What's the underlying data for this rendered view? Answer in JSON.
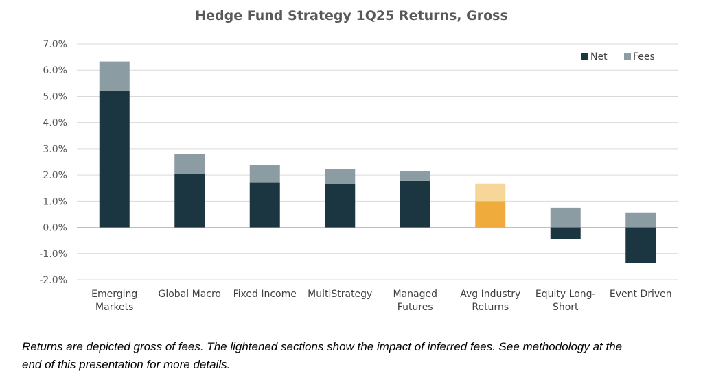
{
  "chart_data": {
    "type": "bar",
    "stacked": true,
    "title": "Hedge Fund Strategy 1Q25 Returns, Gross",
    "xlabel": "",
    "ylabel": "",
    "ylim": [
      -2.0,
      7.0
    ],
    "y_ticks": [
      "7.0%",
      "6.0%",
      "5.0%",
      "4.0%",
      "3.0%",
      "2.0%",
      "1.0%",
      "0.0%",
      "-1.0%",
      "-2.0%"
    ],
    "y_tick_values": [
      7,
      6,
      5,
      4,
      3,
      2,
      1,
      0,
      -1,
      -2
    ],
    "grid": true,
    "legend_position": "top-right",
    "categories": [
      [
        "Emerging",
        "Markets"
      ],
      [
        "Global Macro"
      ],
      [
        "Fixed Income"
      ],
      [
        "MultiStrategy"
      ],
      [
        "Managed",
        "Futures"
      ],
      [
        "Avg Industry",
        "Returns"
      ],
      [
        "Equity Long-",
        "Short"
      ],
      [
        "Event Driven"
      ]
    ],
    "series": [
      {
        "name": "Net",
        "values": [
          5.2,
          2.05,
          1.7,
          1.65,
          1.77,
          1.0,
          -0.45,
          -1.35
        ]
      },
      {
        "name": "Fees",
        "values": [
          1.13,
          0.75,
          0.67,
          0.57,
          0.37,
          0.67,
          0.75,
          0.57
        ]
      }
    ],
    "highlight_index": 5,
    "colors": {
      "net": "#1b3640",
      "fees": "#8c9ca3",
      "highlight_net": "#f0ab3d",
      "highlight_fees": "#f6d699",
      "grid": "#d9d9d9",
      "axis": "#bfbfbf"
    }
  },
  "footnote": {
    "line1": "Returns are depicted gross of fees.  The lightened sections show the impact of inferred fees.  See methodology at the",
    "line2": "end of this presentation for more details."
  }
}
